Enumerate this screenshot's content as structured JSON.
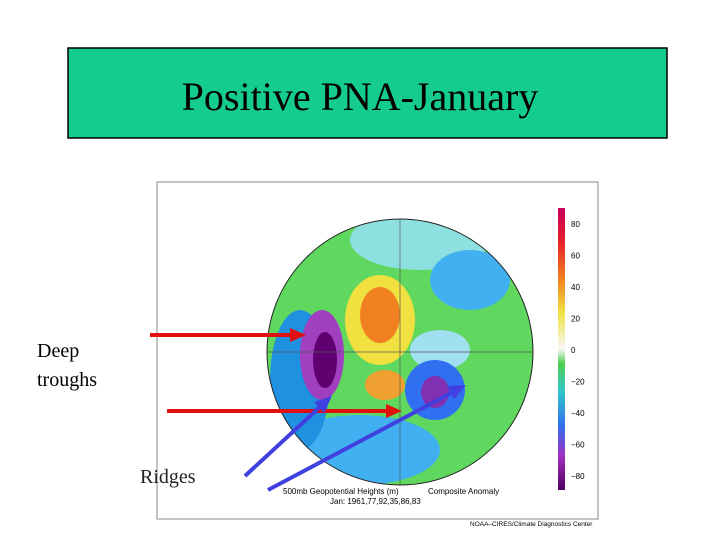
{
  "title": "Positive PNA-January",
  "labels": {
    "troughs": [
      "Deep",
      "troughs"
    ],
    "ridges": "Ridges"
  },
  "map": {
    "legend": [
      "80",
      "60",
      "40",
      "20",
      "0",
      "−20",
      "−40",
      "−60",
      "−80"
    ],
    "caption": [
      "500mb Geopotential Heights (m)",
      "Composite Anomaly"
    ],
    "dates": "Jan: 1961,77,92,35,86,83",
    "credit": "NOAA–CIRES/Climate Diagnostics Center"
  }
}
